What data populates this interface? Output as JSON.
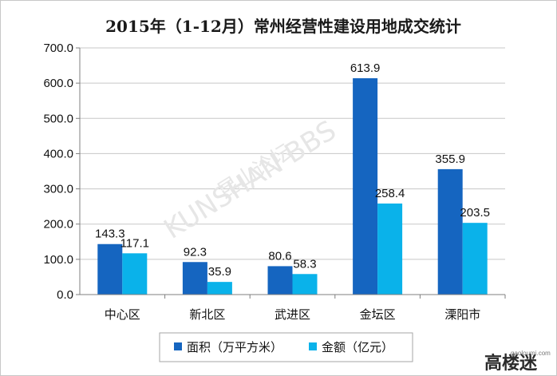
{
  "chart_data": {
    "type": "bar",
    "title": "2015年（1-12月）常州经营性建设用地成交统计",
    "categories": [
      "中心区",
      "新北区",
      "武进区",
      "金坛区",
      "溧阳市"
    ],
    "series": [
      {
        "name": "面积（万平方米）",
        "color": "#1565c0",
        "values": [
          143.3,
          92.3,
          80.6,
          613.9,
          355.9
        ],
        "labels": [
          "143.3",
          "92.3",
          "80.6",
          "613.9",
          "355.9"
        ]
      },
      {
        "name": "金额（亿元）",
        "color": "#0ab2ea",
        "values": [
          117.1,
          35.9,
          58.3,
          258.4,
          203.5
        ],
        "labels": [
          "117.1",
          "35.9",
          "58.3",
          "258.4",
          "203.5"
        ]
      }
    ],
    "ylim": [
      0,
      700
    ],
    "yticks": [
      "0.0",
      "100.0",
      "200.0",
      "300.0",
      "400.0",
      "500.0",
      "600.0",
      "700.0"
    ],
    "grid": true,
    "legend": "bottom"
  },
  "watermark": {
    "text": "KUNSHAN BBS",
    "cn": "昆山论坛"
  },
  "logo": {
    "text": "高楼迷",
    "sub": "gaoloumi.com"
  }
}
